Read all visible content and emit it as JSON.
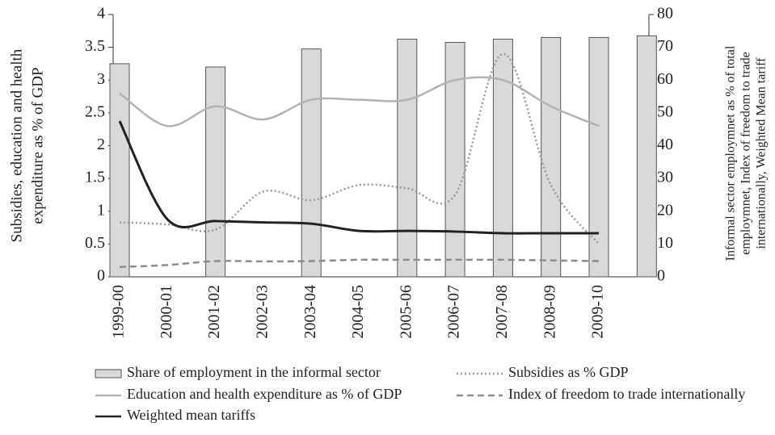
{
  "chart_data": {
    "type": "bar-line",
    "y_label": [
      "Subsidies, education and health",
      "expenditure as % of GDP"
    ],
    "y2_label": [
      "Informal sector employmnet as % of total",
      "employmnet, Index of freedom to trade",
      "internationally, Weighted Mean tariff"
    ],
    "categories": [
      "1999-00",
      "2000-01",
      "2001-02",
      "2002-03",
      "2003-04",
      "2004-05",
      "2005-06",
      "2006-07",
      "2007-08",
      "2008-09",
      "2009-10",
      null
    ],
    "ylim": [
      0,
      4
    ],
    "yticks": [
      0,
      0.5,
      1,
      1.5,
      2,
      2.5,
      3,
      3.5,
      4
    ],
    "y2lim": [
      0,
      80
    ],
    "y2ticks": [
      0,
      10,
      20,
      30,
      40,
      50,
      60,
      70,
      80
    ],
    "series": [
      {
        "name": "Share of employment in the informal sector",
        "type": "bar",
        "axis": "y2",
        "color": "#d9d9d9",
        "values": [
          65,
          null,
          64,
          null,
          69.5,
          null,
          72.5,
          71.5,
          72.5,
          73,
          73,
          73.5
        ]
      },
      {
        "name": "Subsidies as % GDP",
        "type": "line",
        "style": "dotted",
        "color": "#9a9a9a",
        "values": [
          0.83,
          0.8,
          0.72,
          1.3,
          1.17,
          1.4,
          1.35,
          1.25,
          3.4,
          1.4,
          0.5,
          null
        ]
      },
      {
        "name": "Education and health expenditure as % of GDP",
        "type": "line",
        "style": "solid",
        "color": "#b3b3b3",
        "values": [
          2.8,
          2.3,
          2.6,
          2.4,
          2.7,
          2.7,
          2.7,
          3.0,
          3.0,
          2.6,
          2.3,
          null
        ]
      },
      {
        "name": "Index of freedom to trade internationally",
        "type": "line",
        "style": "dashed",
        "axis": "y2",
        "color": "#8c8c8c",
        "values": [
          3,
          3.6,
          4.8,
          4.7,
          4.8,
          5.2,
          5.2,
          5.2,
          5.2,
          5,
          4.8,
          null
        ]
      },
      {
        "name": "Weighted mean tariffs",
        "type": "line",
        "style": "solid",
        "axis": "y2",
        "color": "#222222",
        "values": [
          47.5,
          17.5,
          17,
          16.6,
          16.2,
          14,
          14,
          13.8,
          13.3,
          13.3,
          13.3,
          null
        ]
      }
    ]
  }
}
